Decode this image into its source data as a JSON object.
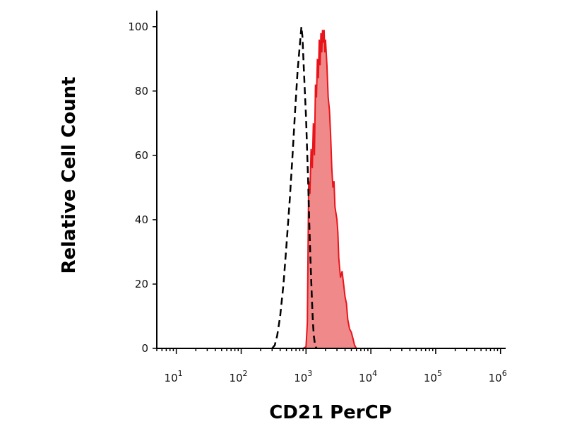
{
  "chart_data": {
    "type": "area",
    "xlabel": "CD21 PerCP",
    "ylabel": "Relative Cell Count",
    "xscale": "log",
    "xlim": [
      5,
      1200000
    ],
    "ylim": [
      0,
      105
    ],
    "grid": false,
    "x_ticks": [
      {
        "value": 10,
        "base": "10",
        "exp": "1"
      },
      {
        "value": 100,
        "base": "10",
        "exp": "2"
      },
      {
        "value": 1000,
        "base": "10",
        "exp": "3"
      },
      {
        "value": 10000,
        "base": "10",
        "exp": "4"
      },
      {
        "value": 100000,
        "base": "10",
        "exp": "5"
      },
      {
        "value": 1000000,
        "base": "10",
        "exp": "6"
      }
    ],
    "y_ticks": [
      {
        "value": 0,
        "label": "0"
      },
      {
        "value": 20,
        "label": "20"
      },
      {
        "value": 40,
        "label": "40"
      },
      {
        "value": 60,
        "label": "60"
      },
      {
        "value": 80,
        "label": "80"
      },
      {
        "value": 100,
        "label": "100"
      }
    ],
    "series": [
      {
        "style": "filled",
        "color": "#e8141b",
        "fill": "#f08a8a",
        "points": [
          [
            5,
            0
          ],
          [
            900,
            0
          ],
          [
            1000,
            0.5
          ],
          [
            1050,
            8
          ],
          [
            1100,
            52
          ],
          [
            1150,
            48
          ],
          [
            1200,
            62
          ],
          [
            1250,
            56
          ],
          [
            1300,
            70
          ],
          [
            1350,
            60
          ],
          [
            1400,
            82
          ],
          [
            1450,
            78
          ],
          [
            1500,
            90
          ],
          [
            1550,
            84
          ],
          [
            1600,
            96
          ],
          [
            1650,
            88
          ],
          [
            1700,
            98
          ],
          [
            1750,
            92
          ],
          [
            1800,
            99
          ],
          [
            1850,
            95
          ],
          [
            1900,
            99
          ],
          [
            1950,
            92
          ],
          [
            2000,
            96
          ],
          [
            2100,
            88
          ],
          [
            2200,
            78
          ],
          [
            2300,
            74
          ],
          [
            2400,
            66
          ],
          [
            2500,
            56
          ],
          [
            2600,
            50
          ],
          [
            2700,
            52
          ],
          [
            2800,
            44
          ],
          [
            2900,
            42
          ],
          [
            3000,
            40
          ],
          [
            3100,
            36
          ],
          [
            3200,
            28
          ],
          [
            3400,
            22
          ],
          [
            3600,
            24
          ],
          [
            3800,
            20
          ],
          [
            4000,
            16
          ],
          [
            4200,
            14
          ],
          [
            4400,
            9
          ],
          [
            4700,
            6
          ],
          [
            5000,
            5
          ],
          [
            5300,
            3
          ],
          [
            5600,
            1
          ],
          [
            6000,
            0
          ],
          [
            1200000,
            0
          ]
        ]
      },
      {
        "style": "dashed",
        "color": "#000000",
        "points": [
          [
            300,
            0
          ],
          [
            330,
            1
          ],
          [
            360,
            4
          ],
          [
            400,
            10
          ],
          [
            450,
            20
          ],
          [
            500,
            32
          ],
          [
            560,
            46
          ],
          [
            620,
            60
          ],
          [
            680,
            74
          ],
          [
            740,
            86
          ],
          [
            800,
            94
          ],
          [
            850,
            100
          ],
          [
            880,
            97
          ],
          [
            920,
            88
          ],
          [
            960,
            80
          ],
          [
            1000,
            72
          ],
          [
            1040,
            62
          ],
          [
            1080,
            52
          ],
          [
            1120,
            40
          ],
          [
            1160,
            30
          ],
          [
            1200,
            22
          ],
          [
            1240,
            14
          ],
          [
            1280,
            8
          ],
          [
            1320,
            4
          ],
          [
            1380,
            1
          ],
          [
            1450,
            0
          ]
        ]
      }
    ]
  }
}
